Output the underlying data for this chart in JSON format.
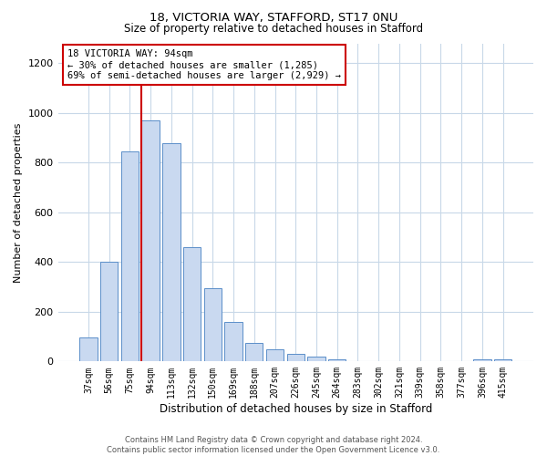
{
  "title1": "18, VICTORIA WAY, STAFFORD, ST17 0NU",
  "title2": "Size of property relative to detached houses in Stafford",
  "xlabel": "Distribution of detached houses by size in Stafford",
  "ylabel": "Number of detached properties",
  "bar_labels": [
    "37sqm",
    "56sqm",
    "75sqm",
    "94sqm",
    "113sqm",
    "132sqm",
    "150sqm",
    "169sqm",
    "188sqm",
    "207sqm",
    "226sqm",
    "245sqm",
    "264sqm",
    "283sqm",
    "302sqm",
    "321sqm",
    "339sqm",
    "358sqm",
    "377sqm",
    "396sqm",
    "415sqm"
  ],
  "bar_values": [
    95,
    400,
    845,
    970,
    880,
    460,
    295,
    160,
    75,
    50,
    30,
    20,
    10,
    0,
    0,
    0,
    0,
    0,
    0,
    10,
    10
  ],
  "bar_color": "#c9d9f0",
  "bar_edge_color": "#5b8fc9",
  "grid_color": "#c8d8e8",
  "vline_index": 3,
  "vline_color": "#cc0000",
  "annotation_text": "18 VICTORIA WAY: 94sqm\n← 30% of detached houses are smaller (1,285)\n69% of semi-detached houses are larger (2,929) →",
  "annotation_box_color": "#ffffff",
  "annotation_box_edge": "#cc0000",
  "ylim": [
    0,
    1280
  ],
  "yticks": [
    0,
    200,
    400,
    600,
    800,
    1000,
    1200
  ],
  "footer1": "Contains HM Land Registry data © Crown copyright and database right 2024.",
  "footer2": "Contains public sector information licensed under the Open Government Licence v3.0."
}
